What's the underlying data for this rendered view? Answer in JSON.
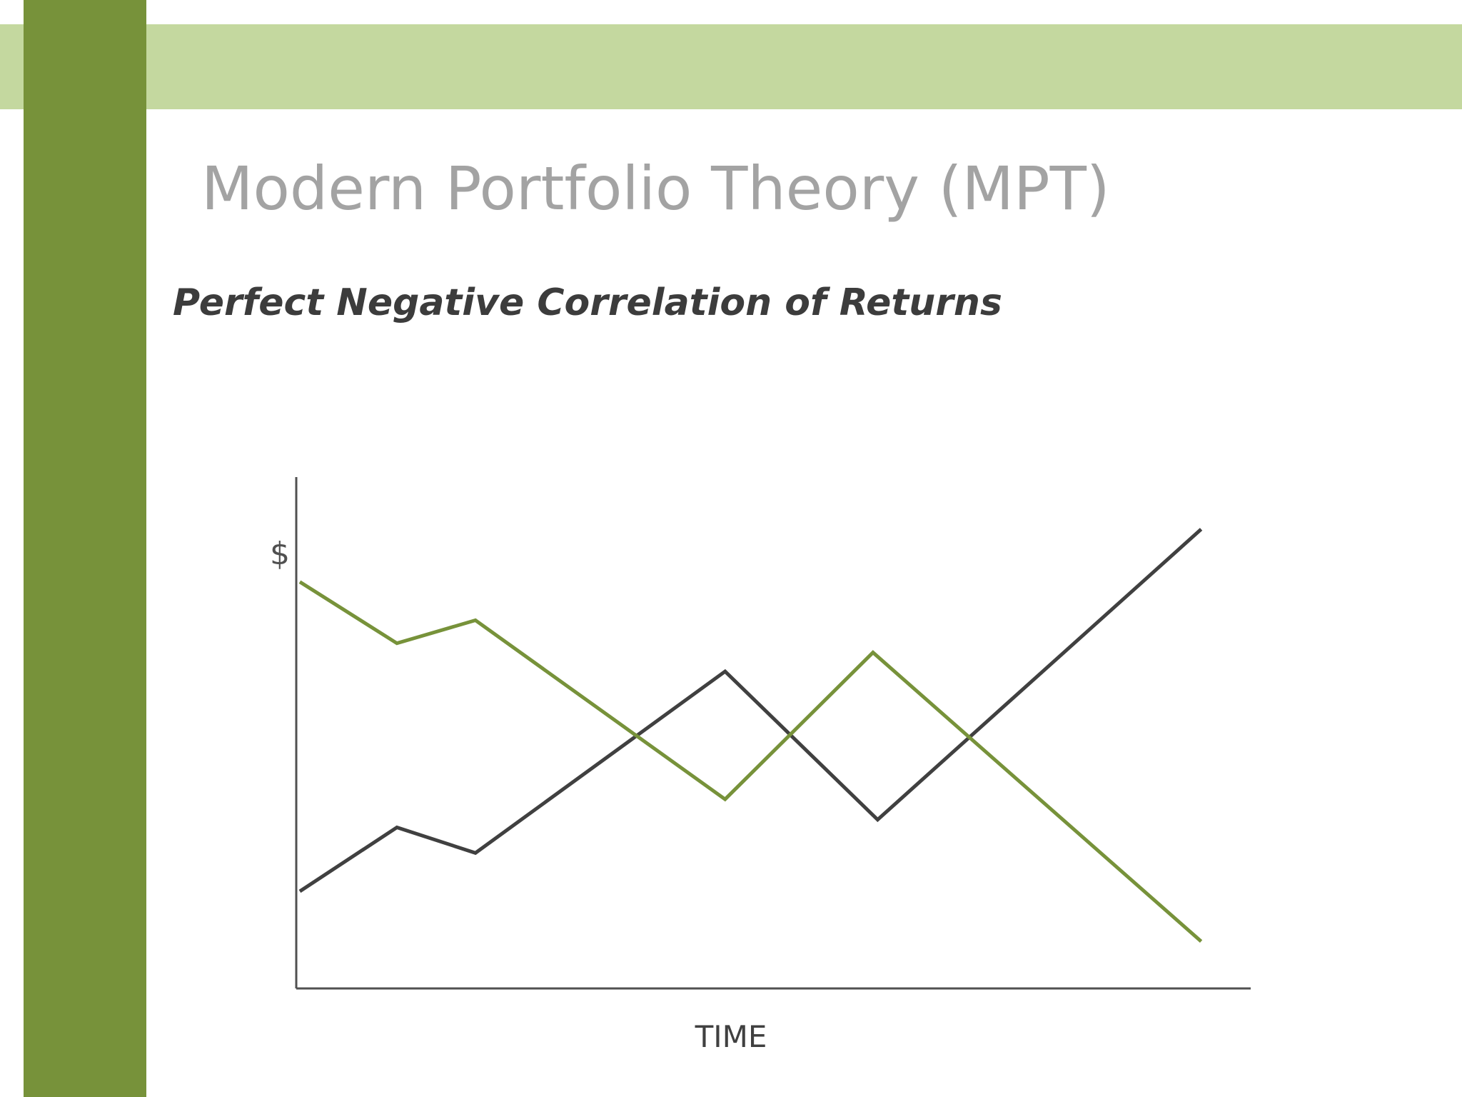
{
  "slide": {
    "title": "Modern Portfolio Theory (MPT)",
    "subtitle": "Perfect Negative Correlation of Returns"
  },
  "colors": {
    "top_band": "#c4d89f",
    "side_bar": "#77923a",
    "title_text": "#a3a3a3",
    "subtitle_text": "#3c3c3c",
    "axis": "#505050",
    "series_dark": "#404040",
    "series_green": "#77923a"
  },
  "chart_data": {
    "type": "line",
    "title": "",
    "xlabel": "TIME",
    "ylabel": "$",
    "xlim": [
      0,
      10
    ],
    "ylim": [
      0,
      10
    ],
    "grid": false,
    "series": [
      {
        "color": "#404040",
        "x": [
          0,
          1.05,
          1.9,
          4.6,
          6.25,
          9.75
        ],
        "y": [
          1.9,
          3.15,
          2.65,
          6.2,
          3.3,
          8.98
        ]
      },
      {
        "color": "#77923a",
        "x": [
          0,
          1.05,
          1.9,
          4.6,
          6.2,
          9.75
        ],
        "y": [
          7.95,
          6.75,
          7.2,
          3.7,
          6.57,
          0.92
        ]
      }
    ]
  }
}
